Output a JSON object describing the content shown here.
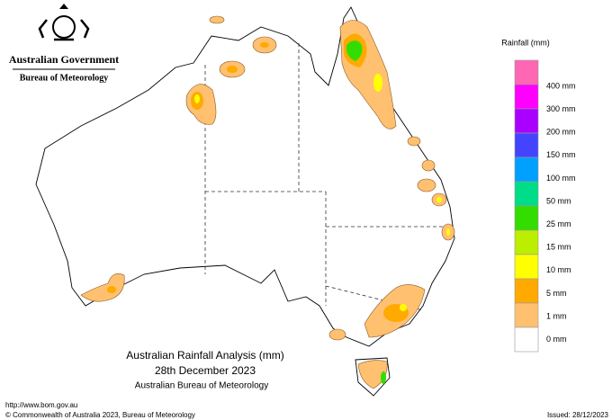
{
  "header": {
    "government": "Australian Government",
    "agency": "Bureau of Meteorology"
  },
  "legend": {
    "title": "Rainfall (mm)",
    "colors": [
      "#ff66b3",
      "#ff00ff",
      "#aa00ff",
      "#4444ff",
      "#00a0ff",
      "#00dd88",
      "#33dd00",
      "#bbee00",
      "#ffff00",
      "#ffaa00",
      "#ffc070",
      "#ffffff"
    ],
    "labels": [
      "400 mm",
      "300 mm",
      "200 mm",
      "150 mm",
      "100 mm",
      "50 mm",
      "25 mm",
      "15 mm",
      "10 mm",
      "5 mm",
      "1 mm",
      "0 mm"
    ]
  },
  "caption": {
    "title": "Australian Rainfall Analysis (mm)",
    "date": "28th December 2023",
    "source": "Australian Bureau of Meteorology"
  },
  "footer": {
    "url": "http://www.bom.gov.au",
    "copyright": "© Commonwealth of Australia 2023, Bureau of Meteorology",
    "issued": "Issued: 28/12/2023"
  }
}
